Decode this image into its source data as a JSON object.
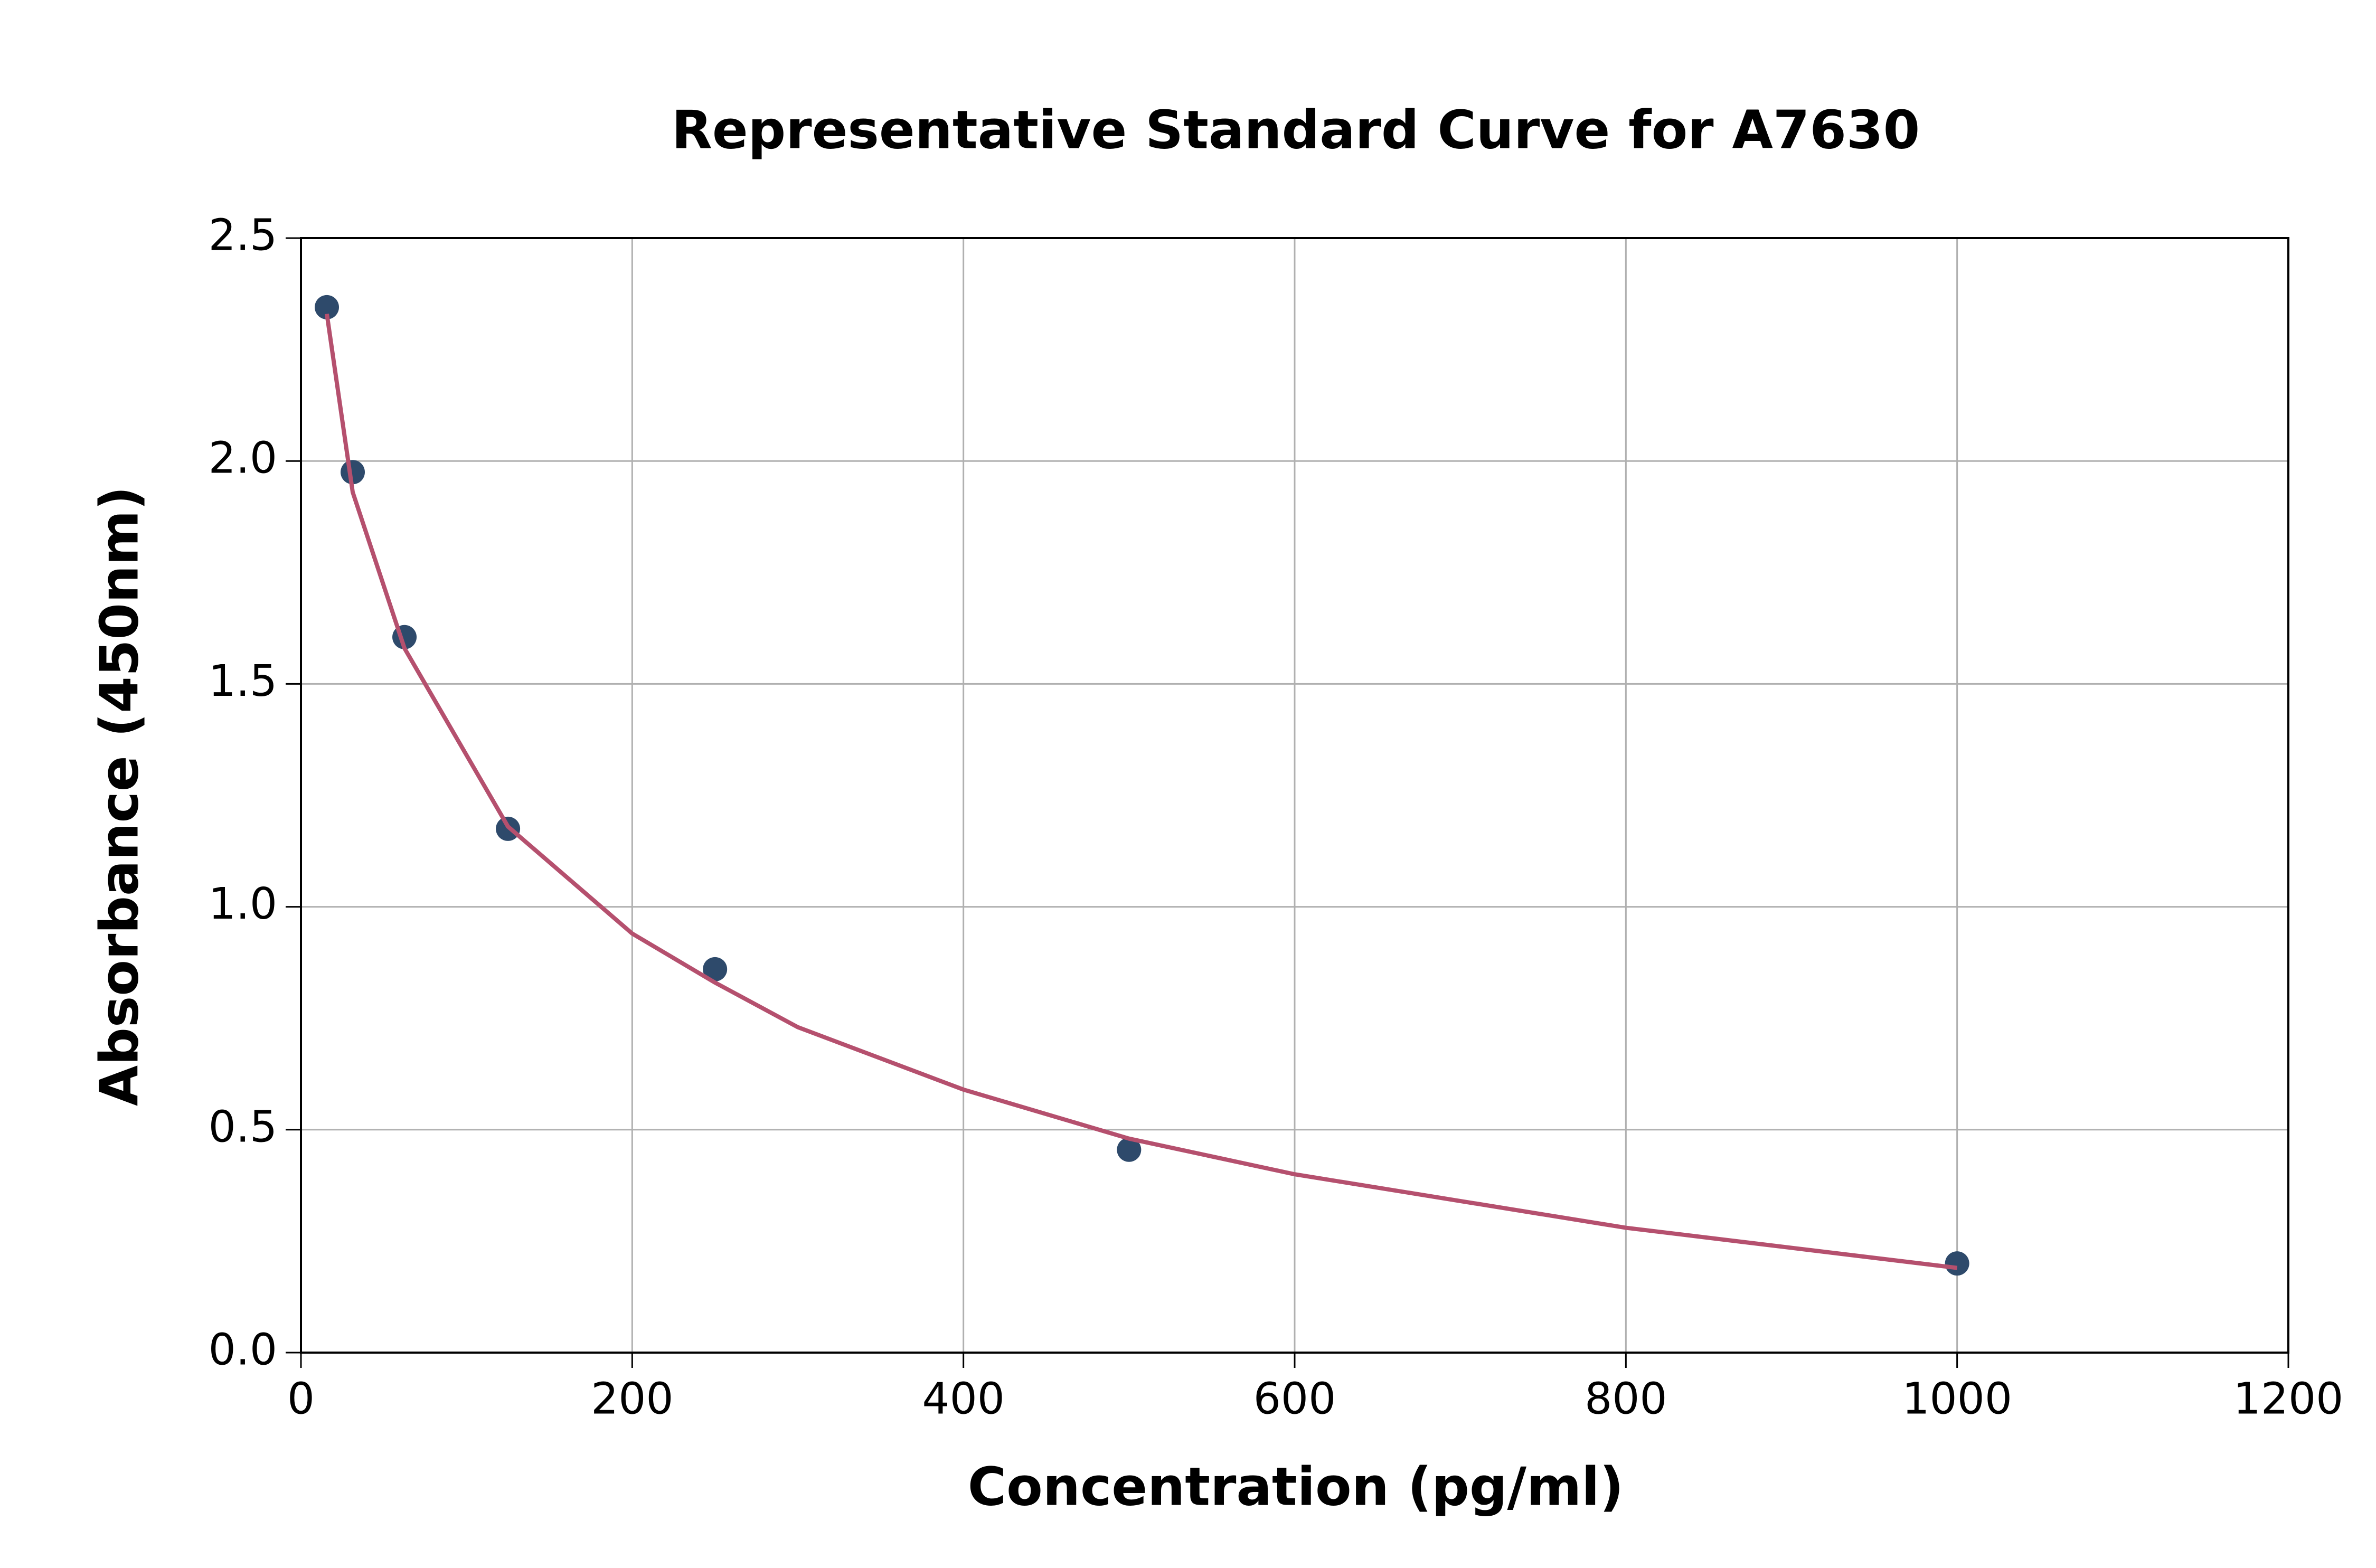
{
  "chart_data": {
    "type": "scatter",
    "title": "Representative Standard Curve for A7630",
    "x_label": "Concentration (pg/ml)",
    "y_label": "Absorbance (450nm)",
    "xlim": [
      0,
      1200
    ],
    "xticks": [
      0,
      200,
      400,
      600,
      800,
      1000,
      1200
    ],
    "ylim": [
      0,
      2.5
    ],
    "yticks": [
      {
        "value": 0,
        "label": "0.0"
      },
      {
        "value": 0.5,
        "label": "0.5"
      },
      {
        "value": 1,
        "label": "1.0"
      },
      {
        "value": 1.5,
        "label": "1.5"
      },
      {
        "value": 2,
        "label": "2.0"
      },
      {
        "value": 2.5,
        "label": "2.5"
      }
    ],
    "grid": true,
    "series": [
      {
        "style": "markers",
        "color": "#2e4a6b",
        "x": [
          15.625,
          31.25,
          62.5,
          125,
          250,
          500,
          1000
        ],
        "values": [
          2.345,
          1.975,
          1.605,
          1.175,
          0.86,
          0.455,
          0.2
        ]
      },
      {
        "style": "line",
        "color": "#b5506e",
        "x": [
          15.625,
          31.25,
          62.5,
          125,
          200,
          250,
          300,
          400,
          500,
          600,
          700,
          800,
          900,
          1000
        ],
        "values": [
          2.33,
          1.93,
          1.58,
          1.18,
          0.94,
          0.83,
          0.73,
          0.59,
          0.48,
          0.4,
          0.34,
          0.28,
          0.235,
          0.19
        ]
      }
    ]
  }
}
